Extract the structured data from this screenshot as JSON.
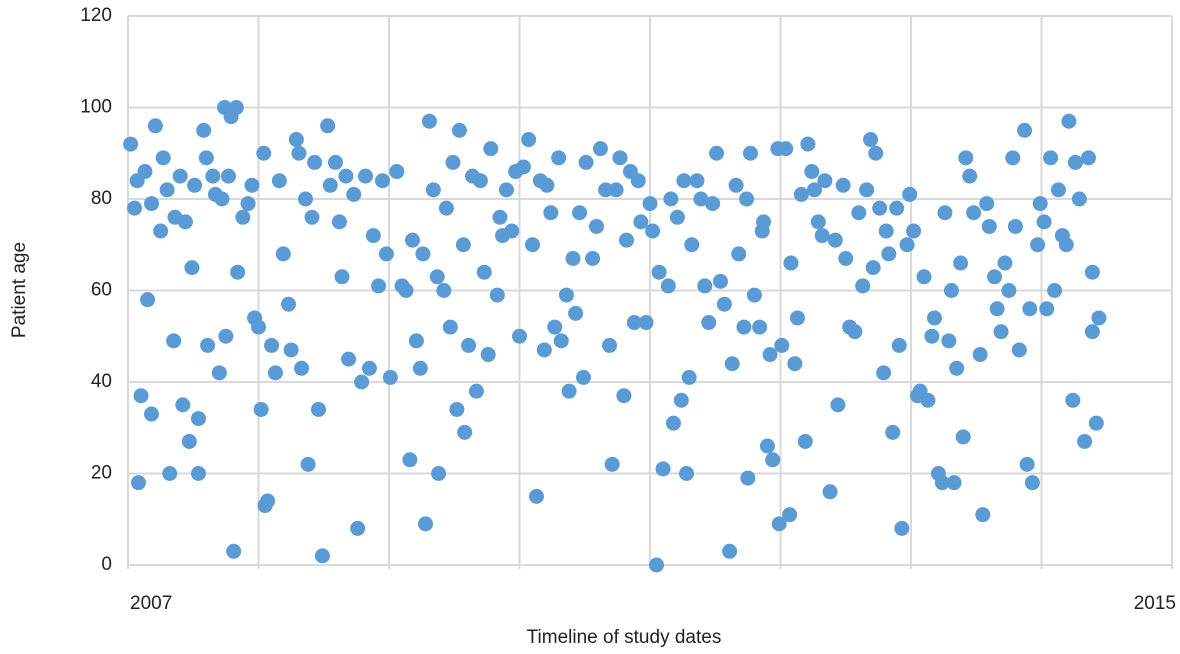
{
  "chart_data": {
    "type": "scatter",
    "x_label": "Timeline of study dates",
    "y_label": "Patient age",
    "color": "#5b9bd5",
    "grid": true,
    "xlim": [
      2007,
      2015
    ],
    "xticks": [
      2007,
      {
        "value": 2008,
        "label": null
      },
      {
        "value": 2009,
        "label": null
      },
      {
        "value": 2010,
        "label": null
      },
      {
        "value": 2011,
        "label": null
      },
      {
        "value": 2012,
        "label": null
      },
      {
        "value": 2013,
        "label": null
      },
      {
        "value": 2014,
        "label": null
      },
      2015
    ],
    "ylim": [
      0,
      120
    ],
    "yticks": [
      0,
      20,
      40,
      60,
      80,
      100,
      120
    ],
    "x": [
      2007.02,
      2007.08,
      2007.05,
      2007.07,
      2007.1,
      2007.13,
      2007.15,
      2007.18,
      2007.18,
      2007.21,
      2007.25,
      2007.27,
      2007.3,
      2007.32,
      2007.35,
      2007.36,
      2007.4,
      2007.42,
      2007.44,
      2007.47,
      2007.49,
      2007.51,
      2007.54,
      2007.54,
      2007.58,
      2007.6,
      2007.61,
      2007.65,
      2007.67,
      2007.7,
      2007.72,
      2007.74,
      2007.75,
      2007.77,
      2007.79,
      2007.81,
      2007.83,
      2007.84,
      2007.88,
      2007.92,
      2007.95,
      2007.97,
      2008.0,
      2008.02,
      2008.04,
      2008.05,
      2008.07,
      2008.1,
      2008.13,
      2008.16,
      2008.19,
      2008.23,
      2008.25,
      2008.29,
      2008.31,
      2008.33,
      2008.36,
      2008.38,
      2008.41,
      2008.43,
      2008.46,
      2008.49,
      2008.53,
      2008.55,
      2008.59,
      2008.62,
      2008.64,
      2008.67,
      2008.69,
      2008.73,
      2008.76,
      2008.79,
      2008.82,
      2008.85,
      2008.88,
      2008.92,
      2008.95,
      2008.98,
      2009.01,
      2009.06,
      2009.1,
      2009.13,
      2009.16,
      2009.18,
      2009.21,
      2009.24,
      2009.26,
      2009.28,
      2009.31,
      2009.34,
      2009.37,
      2009.38,
      2009.42,
      2009.44,
      2009.47,
      2009.49,
      2009.52,
      2009.54,
      2009.57,
      2009.58,
      2009.61,
      2009.64,
      2009.67,
      2009.7,
      2009.73,
      2009.76,
      2009.78,
      2009.83,
      2009.85,
      2009.87,
      2009.9,
      2009.94,
      2009.97,
      2010.0,
      2010.03,
      2010.07,
      2010.1,
      2010.13,
      2010.16,
      2010.19,
      2010.21,
      2010.24,
      2010.27,
      2010.3,
      2010.32,
      2010.36,
      2010.38,
      2010.41,
      2010.43,
      2010.46,
      2010.49,
      2010.51,
      2010.56,
      2010.59,
      2010.62,
      2010.66,
      2010.69,
      2010.71,
      2010.74,
      2010.77,
      2010.8,
      2010.82,
      2010.85,
      2010.88,
      2010.91,
      2010.93,
      2010.97,
      2011.0,
      2011.02,
      2011.05,
      2011.07,
      2011.1,
      2011.14,
      2011.16,
      2011.18,
      2011.21,
      2011.24,
      2011.26,
      2011.28,
      2011.3,
      2011.32,
      2011.36,
      2011.39,
      2011.42,
      2011.45,
      2011.48,
      2011.51,
      2011.54,
      2011.57,
      2011.61,
      2011.63,
      2011.66,
      2011.68,
      2011.72,
      2011.74,
      2011.75,
      2011.77,
      2011.8,
      2011.84,
      2011.86,
      2011.87,
      2011.9,
      2011.92,
      2011.94,
      2011.98,
      2011.99,
      2012.01,
      2012.04,
      2012.07,
      2012.08,
      2012.11,
      2012.13,
      2012.16,
      2012.19,
      2012.21,
      2012.24,
      2012.26,
      2012.29,
      2012.32,
      2012.34,
      2012.38,
      2012.42,
      2012.44,
      2012.48,
      2012.5,
      2012.53,
      2012.57,
      2012.6,
      2012.63,
      2012.66,
      2012.69,
      2012.71,
      2012.73,
      2012.76,
      2012.79,
      2012.81,
      2012.83,
      2012.86,
      2012.89,
      2012.91,
      2012.93,
      2012.97,
      2012.99,
      2013.02,
      2013.05,
      2013.07,
      2013.1,
      2013.13,
      2013.16,
      2013.18,
      2013.21,
      2013.24,
      2013.26,
      2013.29,
      2013.31,
      2013.33,
      2013.35,
      2013.38,
      2013.4,
      2013.42,
      2013.45,
      2013.48,
      2013.53,
      2013.55,
      2013.58,
      2013.6,
      2013.64,
      2013.66,
      2013.69,
      2013.72,
      2013.75,
      2013.78,
      2013.8,
      2013.83,
      2013.87,
      2013.89,
      2013.91,
      2013.93,
      2013.97,
      2013.99,
      2014.02,
      2014.04,
      2014.07,
      2014.1,
      2014.13,
      2014.16,
      2014.19,
      2014.21,
      2014.24,
      2014.26,
      2014.29,
      2014.33,
      2014.36,
      2014.39,
      2014.39,
      2014.42,
      2014.44
    ],
    "values": [
      92,
      18,
      78,
      84,
      37,
      86,
      58,
      33,
      79,
      96,
      73,
      89,
      82,
      20,
      49,
      76,
      85,
      35,
      75,
      27,
      65,
      83,
      32,
      20,
      95,
      89,
      48,
      85,
      81,
      42,
      80,
      100,
      50,
      85,
      98,
      3,
      100,
      64,
      76,
      79,
      83,
      54,
      52,
      34,
      90,
      13,
      14,
      48,
      42,
      84,
      68,
      57,
      47,
      93,
      90,
      43,
      80,
      22,
      76,
      88,
      34,
      2,
      96,
      83,
      88,
      75,
      63,
      85,
      45,
      81,
      8,
      40,
      85,
      43,
      72,
      61,
      84,
      68,
      41,
      86,
      61,
      60,
      23,
      71,
      49,
      43,
      68,
      9,
      97,
      82,
      63,
      20,
      60,
      78,
      52,
      88,
      34,
      95,
      70,
      29,
      48,
      85,
      38,
      84,
      64,
      46,
      91,
      59,
      76,
      72,
      82,
      73,
      86,
      50,
      87,
      93,
      70,
      15,
      84,
      47,
      83,
      77,
      52,
      89,
      49,
      59,
      38,
      67,
      55,
      77,
      41,
      88,
      67,
      74,
      91,
      82,
      48,
      22,
      82,
      89,
      37,
      71,
      86,
      53,
      84,
      75,
      53,
      79,
      73,
      0,
      64,
      21,
      61,
      80,
      31,
      76,
      36,
      84,
      20,
      41,
      70,
      84,
      80,
      61,
      53,
      79,
      90,
      62,
      57,
      3,
      44,
      83,
      68,
      52,
      80,
      19,
      90,
      59,
      52,
      73,
      75,
      26,
      46,
      23,
      91,
      9,
      48,
      91,
      11,
      66,
      44,
      54,
      81,
      27,
      92,
      86,
      82,
      75,
      72,
      84,
      16,
      71,
      35,
      83,
      67,
      52,
      51,
      77,
      61,
      82,
      93,
      65,
      90,
      78,
      42,
      73,
      68,
      29,
      78,
      48,
      8,
      70,
      81,
      73,
      37,
      38,
      63,
      36,
      50,
      54,
      20,
      18,
      77,
      49,
      60,
      18,
      43,
      66,
      28,
      89,
      85,
      77,
      46,
      11,
      79,
      74,
      63,
      56,
      51,
      66,
      60,
      89,
      74,
      47,
      95,
      22,
      56,
      18,
      70,
      79,
      75,
      56,
      89,
      60,
      82,
      72,
      70,
      97,
      36,
      88,
      80,
      27,
      89,
      51,
      64,
      31,
      54
    ]
  }
}
